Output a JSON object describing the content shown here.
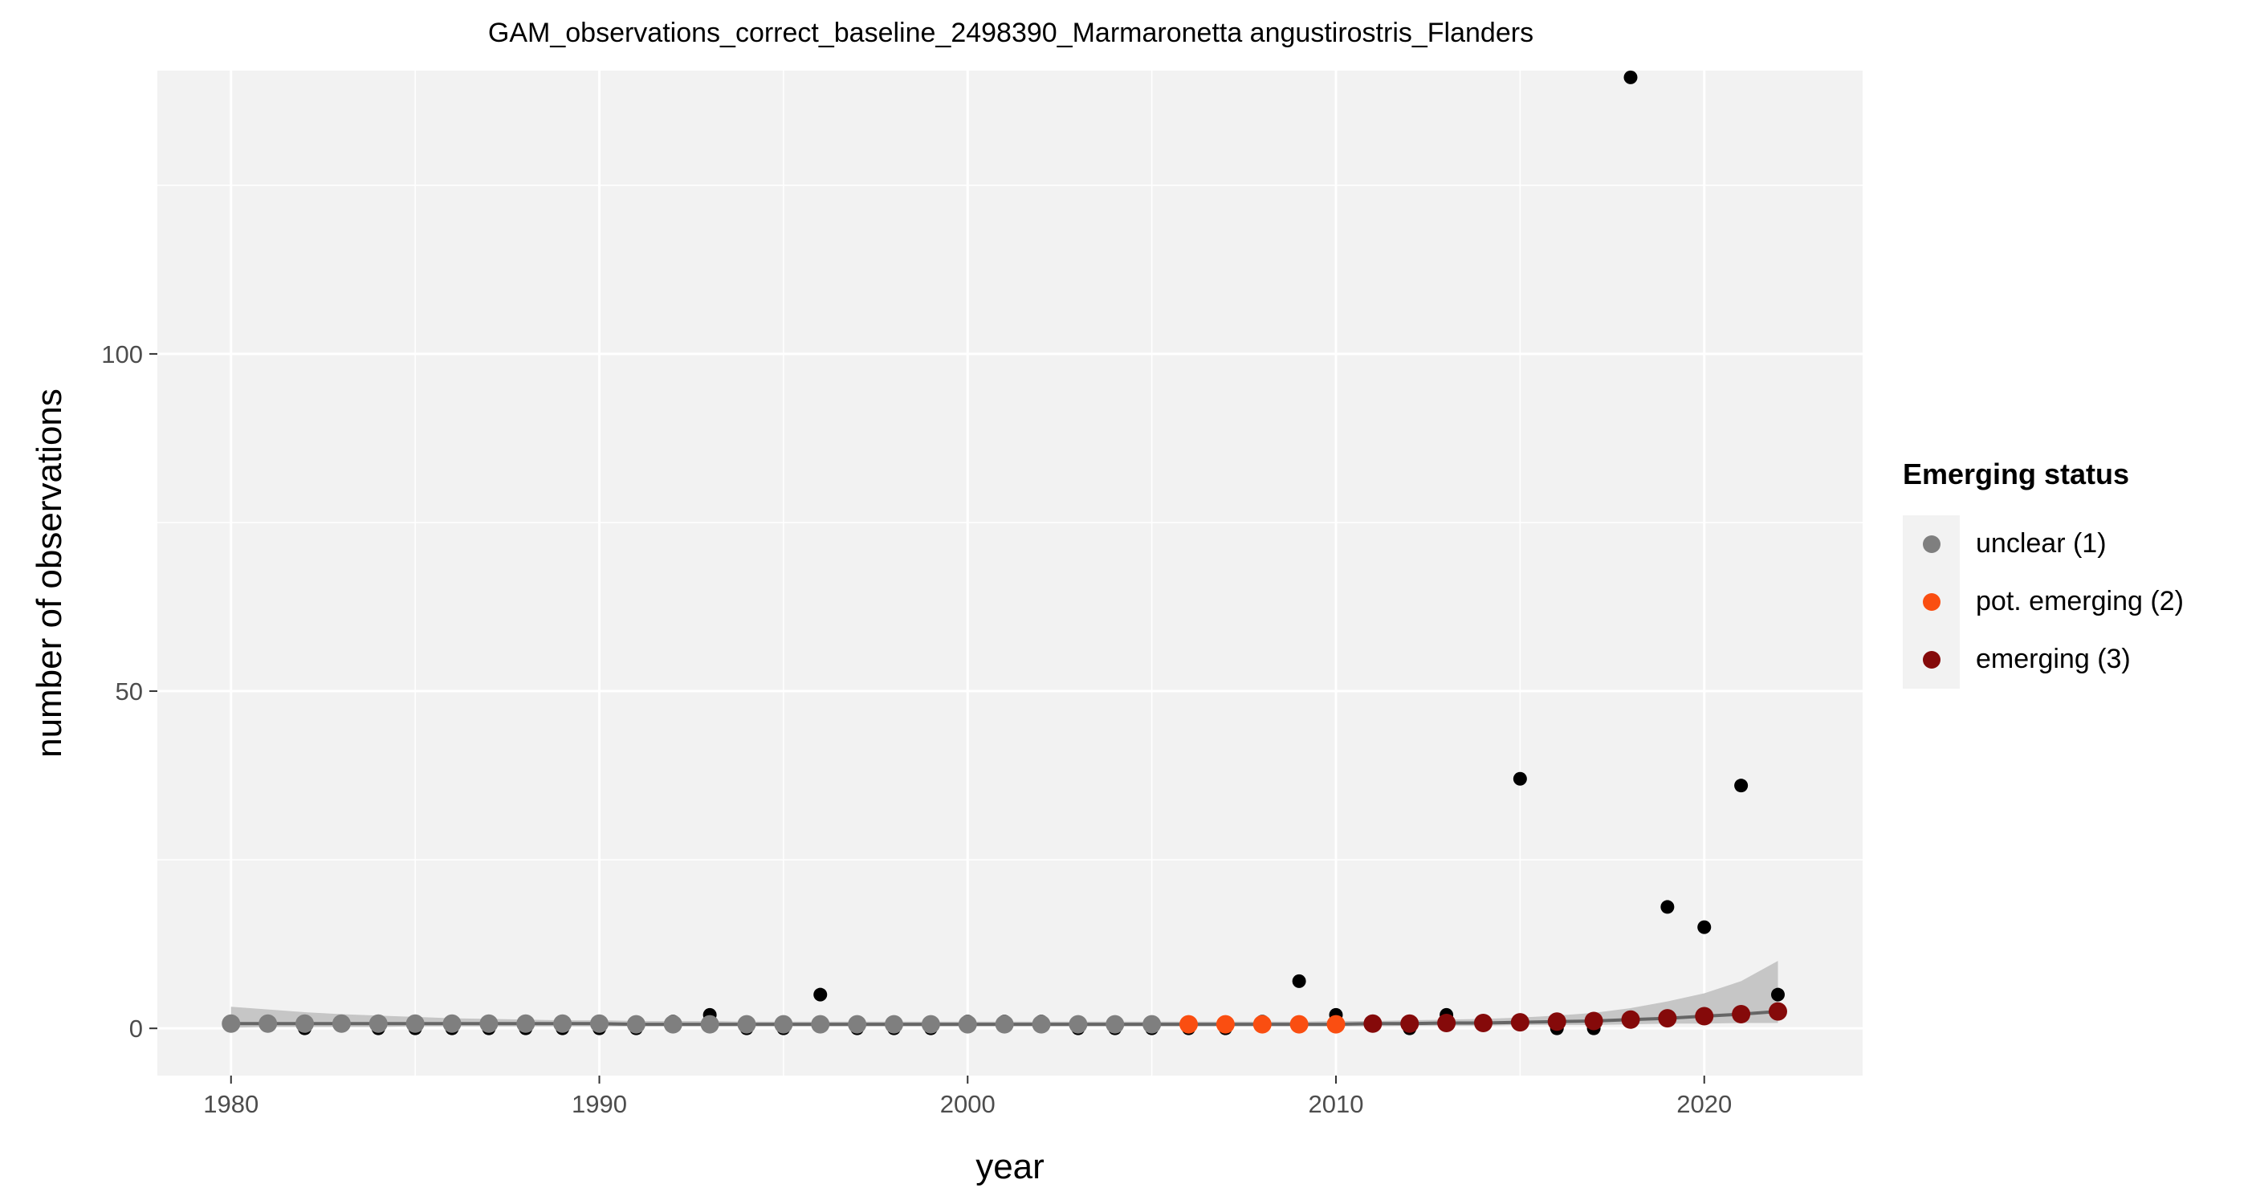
{
  "chart_data": {
    "type": "scatter",
    "title": "GAM_observations_correct_baseline_2498390_Marmaronetta angustirostris_Flanders",
    "xlabel": "year",
    "ylabel": "number of observations",
    "xlim": [
      1978,
      2024.3
    ],
    "ylim": [
      -7,
      142
    ],
    "x_ticks": [
      "1980",
      "1990",
      "2000",
      "2010",
      "2020"
    ],
    "y_ticks": [
      "0",
      "50",
      "100"
    ],
    "grid": true,
    "legend_position": "right",
    "legend_title": "Emerging status",
    "observations": {
      "x": [
        1980,
        1981,
        1982,
        1983,
        1984,
        1985,
        1986,
        1987,
        1988,
        1989,
        1990,
        1991,
        1992,
        1993,
        1994,
        1995,
        1996,
        1997,
        1998,
        1999,
        2000,
        2001,
        2002,
        2003,
        2004,
        2005,
        2006,
        2007,
        2008,
        2009,
        2010,
        2011,
        2012,
        2013,
        2014,
        2015,
        2016,
        2017,
        2018,
        2019,
        2020,
        2021,
        2022
      ],
      "y": [
        1,
        1,
        0,
        1,
        0,
        0,
        0,
        0,
        0,
        0,
        0,
        0,
        1,
        2,
        0,
        0,
        5,
        0,
        0,
        0,
        1,
        1,
        1,
        0,
        0,
        0,
        0,
        0,
        1,
        7,
        2,
        1,
        0,
        2,
        1,
        37,
        0,
        0,
        141,
        18,
        15,
        36,
        5
      ]
    },
    "fit": {
      "x": [
        1980,
        1981,
        1982,
        1983,
        1984,
        1985,
        1986,
        1987,
        1988,
        1989,
        1990,
        1991,
        1992,
        1993,
        1994,
        1995,
        1996,
        1997,
        1998,
        1999,
        2000,
        2001,
        2002,
        2003,
        2004,
        2005,
        2006,
        2007,
        2008,
        2009,
        2010,
        2011,
        2012,
        2013,
        2014,
        2015,
        2016,
        2017,
        2018,
        2019,
        2020,
        2021,
        2022
      ],
      "y": [
        0.7,
        0.7,
        0.7,
        0.7,
        0.7,
        0.7,
        0.7,
        0.7,
        0.7,
        0.7,
        0.7,
        0.6,
        0.6,
        0.6,
        0.6,
        0.6,
        0.6,
        0.6,
        0.6,
        0.6,
        0.6,
        0.6,
        0.6,
        0.6,
        0.6,
        0.6,
        0.6,
        0.6,
        0.6,
        0.6,
        0.6,
        0.7,
        0.7,
        0.8,
        0.8,
        0.9,
        1.0,
        1.1,
        1.3,
        1.5,
        1.8,
        2.1,
        2.5
      ],
      "lower": [
        0.1,
        0.2,
        0.2,
        0.2,
        0.2,
        0.3,
        0.3,
        0.3,
        0.3,
        0.3,
        0.3,
        0.3,
        0.3,
        0.3,
        0.3,
        0.3,
        0.3,
        0.3,
        0.3,
        0.3,
        0.3,
        0.3,
        0.3,
        0.3,
        0.3,
        0.3,
        0.3,
        0.3,
        0.3,
        0.3,
        0.3,
        0.3,
        0.4,
        0.4,
        0.4,
        0.5,
        0.5,
        0.5,
        0.6,
        0.7,
        0.7,
        0.8,
        0.8
      ],
      "upper": [
        3.2,
        2.8,
        2.4,
        2.1,
        1.9,
        1.7,
        1.5,
        1.4,
        1.3,
        1.2,
        1.2,
        1.1,
        1.1,
        1.1,
        1.0,
        1.0,
        1.0,
        1.0,
        1.0,
        1.0,
        1.0,
        1.0,
        1.0,
        1.0,
        1.0,
        1.0,
        1.0,
        1.0,
        1.0,
        1.0,
        1.1,
        1.1,
        1.2,
        1.3,
        1.4,
        1.6,
        1.9,
        2.3,
        3.0,
        4.0,
        5.2,
        7.0,
        10.0
      ],
      "status": [
        1,
        1,
        1,
        1,
        1,
        1,
        1,
        1,
        1,
        1,
        1,
        1,
        1,
        1,
        1,
        1,
        1,
        1,
        1,
        1,
        1,
        1,
        1,
        1,
        1,
        1,
        2,
        2,
        2,
        2,
        2,
        3,
        3,
        3,
        3,
        3,
        3,
        3,
        3,
        3,
        3,
        3,
        3
      ]
    },
    "series": [
      {
        "name": "unclear (1)",
        "color": "#7f7f7f"
      },
      {
        "name": "pot. emerging (2)",
        "color": "#fa4e11"
      },
      {
        "name": "emerging (3)",
        "color": "#850a0a"
      }
    ]
  },
  "colors": {
    "panel": "#f2f2f2",
    "grid": "#ffffff",
    "ribbon": "#c6c6c6",
    "fit_line": "#666666",
    "observation": "#000000"
  }
}
